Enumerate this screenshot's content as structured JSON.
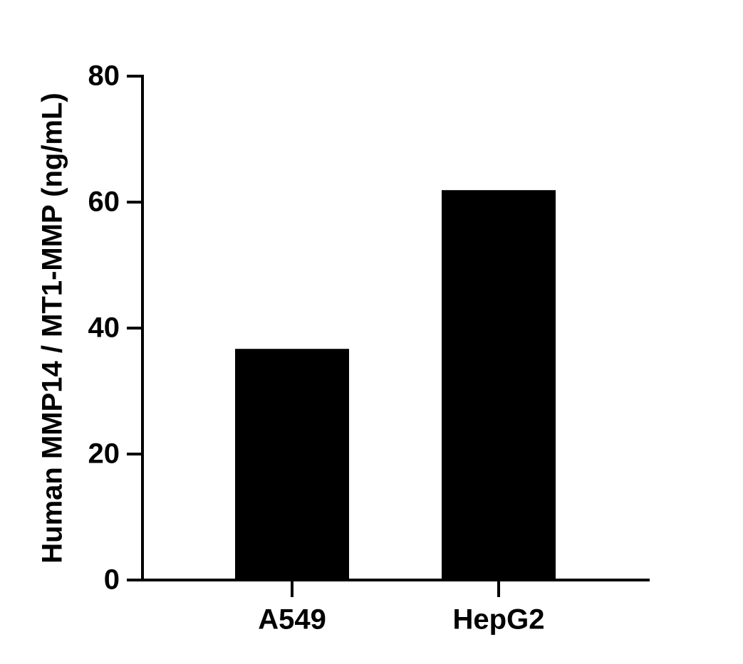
{
  "chart_data": {
    "type": "bar",
    "y_label": "Human MMP14 / MT1-MMP (ng/mL)",
    "categories": [
      "A549",
      "HepG2"
    ],
    "values": [
      36.7,
      61.9
    ],
    "color": "#000000",
    "ylim": [
      0,
      80
    ],
    "yticks": [
      0,
      20,
      40,
      60,
      80
    ],
    "grid": false
  }
}
